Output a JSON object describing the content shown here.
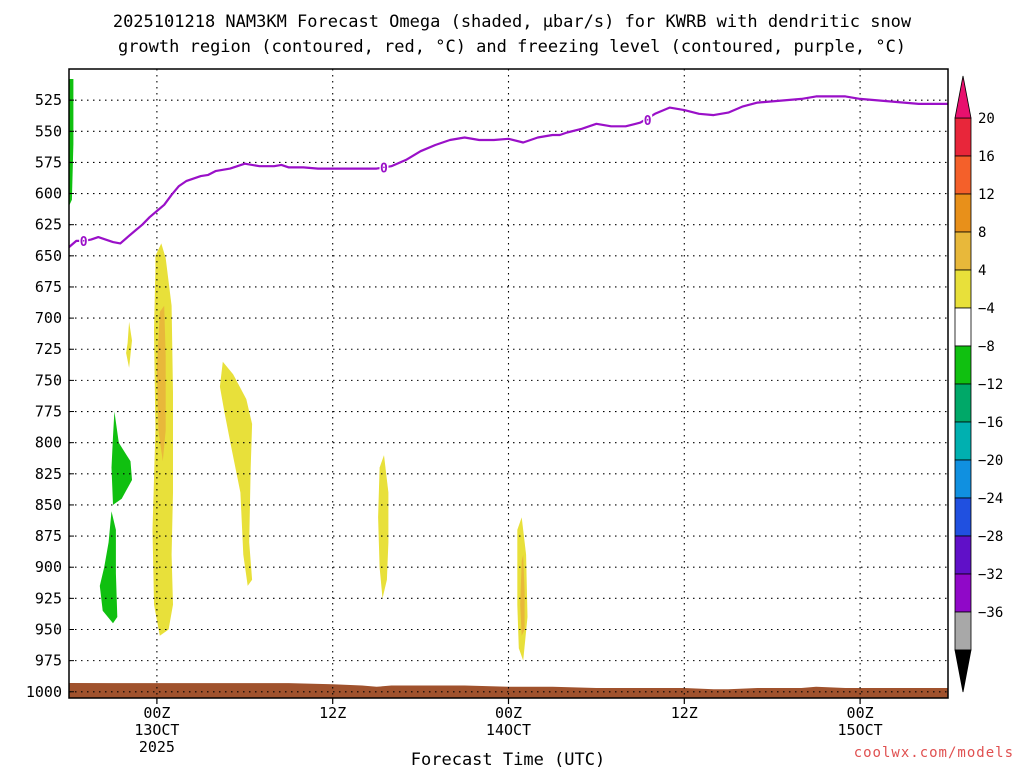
{
  "chart_data": {
    "type": "heatmap",
    "title_lines": [
      "2025101218 NAM3KM Forecast Omega (shaded, μbar/s) for KWRB with dendritic snow",
      "growth region (contoured, red, °C) and freezing level (contoured, purple, °C)"
    ],
    "xlabel": "Forecast Time (UTC)",
    "ylabel": "",
    "credit": "coolwx.com/models",
    "x_unit": "hours since 2025-10-12 18Z",
    "xlim": [
      0,
      60
    ],
    "ylim": [
      1005,
      500
    ],
    "y_ticks": [
      525,
      550,
      575,
      600,
      625,
      650,
      675,
      700,
      725,
      750,
      775,
      800,
      825,
      850,
      875,
      900,
      925,
      950,
      975,
      1000
    ],
    "x_ticks": [
      {
        "x": 6,
        "lines": [
          "00Z",
          "13OCT",
          "2025"
        ]
      },
      {
        "x": 18,
        "lines": [
          "12Z"
        ]
      },
      {
        "x": 30,
        "lines": [
          "00Z",
          "14OCT"
        ]
      },
      {
        "x": 42,
        "lines": [
          "12Z"
        ]
      },
      {
        "x": 54,
        "lines": [
          "00Z",
          "15OCT"
        ]
      }
    ],
    "vertical_grid_x": [
      6,
      18,
      30,
      42,
      54
    ],
    "grid": true,
    "colorbar": {
      "placement": "right",
      "labels": [
        "20",
        "16",
        "12",
        "8",
        "4",
        "−4",
        "−8",
        "−12",
        "−16",
        "−20",
        "−24",
        "−28",
        "−32",
        "−36"
      ],
      "top_arrow_color": "#e8106e",
      "bottom_arrow_color": "#000000",
      "colors": [
        "#e8263a",
        "#f4602a",
        "#e8901a",
        "#e8b83a",
        "#e8e03a",
        "#ffffff",
        "#10c010",
        "#00a868",
        "#00b0b0",
        "#1090e0",
        "#2050e0",
        "#6010c8",
        "#9008c8",
        "#a8a8a8"
      ]
    },
    "freezing_level": {
      "color": "#9a10c8",
      "label": "0",
      "x": [
        0,
        0.5,
        1,
        1.5,
        2,
        2.5,
        3,
        3.5,
        4,
        4.5,
        5,
        5.5,
        6,
        6.5,
        7,
        7.5,
        8,
        8.5,
        9,
        9.5,
        10,
        11,
        12,
        13,
        13.5,
        14,
        14.5,
        15,
        16,
        17,
        18,
        19,
        20,
        21,
        21.5,
        22,
        23,
        24,
        25,
        26,
        27,
        28,
        29,
        30,
        31,
        32,
        33,
        33.5,
        34,
        35,
        36,
        37,
        38,
        39,
        40,
        41,
        42,
        43,
        44,
        45,
        46,
        47,
        48,
        49,
        50,
        51,
        52,
        53,
        54,
        55,
        56,
        57,
        58,
        59,
        60
      ],
      "y": [
        643,
        638,
        638,
        637,
        635,
        637,
        639,
        640,
        635,
        630,
        625,
        619,
        614,
        609,
        601,
        594,
        590,
        588,
        586,
        585,
        582,
        580,
        576,
        578,
        578,
        578,
        577,
        579,
        579,
        580,
        580,
        580,
        580,
        580,
        579,
        578,
        573,
        566,
        561,
        557,
        555,
        557,
        557,
        556,
        559,
        555,
        553,
        553,
        551,
        548,
        544,
        546,
        546,
        543,
        536,
        531,
        533,
        536,
        537,
        535,
        530,
        527,
        526,
        525,
        524,
        522,
        522,
        522,
        524,
        525,
        526,
        527,
        528,
        528,
        528
      ],
      "label_positions": [
        {
          "x": 1,
          "y": 638
        },
        {
          "x": 21.5,
          "y": 579
        },
        {
          "x": 39.5,
          "y": 541
        }
      ]
    },
    "omega_regions": [
      {
        "name": "4 to 8",
        "color": "#e8e03a",
        "points": [
          [
            5.9,
            650
          ],
          [
            6.3,
            640
          ],
          [
            6.6,
            652
          ],
          [
            7.0,
            690
          ],
          [
            7.1,
            760
          ],
          [
            7.1,
            840
          ],
          [
            7.0,
            890
          ],
          [
            7.1,
            930
          ],
          [
            6.8,
            950
          ],
          [
            6.2,
            955
          ],
          [
            5.8,
            930
          ],
          [
            5.7,
            870
          ],
          [
            5.9,
            790
          ],
          [
            5.8,
            710
          ],
          [
            5.9,
            660
          ]
        ]
      },
      {
        "name": "4 to 8",
        "color": "#e8e03a",
        "points": [
          [
            10.5,
            735
          ],
          [
            11.2,
            745
          ],
          [
            12.1,
            765
          ],
          [
            12.5,
            785
          ],
          [
            12.4,
            820
          ],
          [
            12.3,
            880
          ],
          [
            12.5,
            910
          ],
          [
            12.2,
            915
          ],
          [
            11.9,
            890
          ],
          [
            11.7,
            840
          ],
          [
            11.1,
            805
          ],
          [
            10.6,
            775
          ],
          [
            10.3,
            755
          ]
        ]
      },
      {
        "name": "4 to 8",
        "color": "#e8e03a",
        "points": [
          [
            4.0,
            720
          ],
          [
            4.1,
            703
          ],
          [
            4.3,
            718
          ],
          [
            4.1,
            740
          ],
          [
            3.9,
            728
          ]
        ]
      },
      {
        "name": "4 to 8",
        "color": "#e8e03a",
        "points": [
          [
            21.2,
            820
          ],
          [
            21.5,
            810
          ],
          [
            21.8,
            840
          ],
          [
            21.8,
            880
          ],
          [
            21.7,
            910
          ],
          [
            21.4,
            925
          ],
          [
            21.2,
            900
          ],
          [
            21.1,
            860
          ]
        ]
      },
      {
        "name": "4 to 8",
        "color": "#e8e03a",
        "points": [
          [
            30.6,
            870
          ],
          [
            30.9,
            860
          ],
          [
            31.2,
            890
          ],
          [
            31.3,
            940
          ],
          [
            31.0,
            975
          ],
          [
            30.7,
            965
          ],
          [
            30.6,
            930
          ]
        ]
      },
      {
        "name": "8 to 12",
        "color": "#e8b83a",
        "points": [
          [
            6.2,
            695
          ],
          [
            6.5,
            690
          ],
          [
            6.6,
            730
          ],
          [
            6.6,
            790
          ],
          [
            6.4,
            815
          ],
          [
            6.1,
            790
          ],
          [
            6.0,
            740
          ]
        ]
      },
      {
        "name": "8 to 12",
        "color": "#e8b83a",
        "points": [
          [
            30.9,
            895
          ],
          [
            31.0,
            890
          ],
          [
            31.1,
            920
          ],
          [
            31.1,
            950
          ],
          [
            30.9,
            955
          ],
          [
            30.8,
            930
          ]
        ]
      },
      {
        "name": "-8 to -4",
        "color": "#10c010",
        "points": [
          [
            3.1,
            775
          ],
          [
            3.4,
            800
          ],
          [
            4.2,
            815
          ],
          [
            4.3,
            830
          ],
          [
            3.6,
            845
          ],
          [
            3.0,
            850
          ],
          [
            2.9,
            820
          ],
          [
            3.0,
            795
          ]
        ]
      },
      {
        "name": "-8 to -4",
        "color": "#10c010",
        "points": [
          [
            2.9,
            855
          ],
          [
            3.2,
            870
          ],
          [
            3.2,
            905
          ],
          [
            3.3,
            940
          ],
          [
            3.0,
            945
          ],
          [
            2.3,
            935
          ],
          [
            2.1,
            915
          ],
          [
            2.4,
            900
          ],
          [
            2.7,
            880
          ]
        ]
      },
      {
        "name": "-8 to -4",
        "color": "#10c010",
        "points": [
          [
            0.0,
            508
          ],
          [
            0.3,
            508
          ],
          [
            0.3,
            560
          ],
          [
            0.2,
            605
          ],
          [
            0.0,
            610
          ]
        ]
      }
    ],
    "surface": {
      "color": "#a0522d",
      "x": [
        0,
        3,
        6,
        9,
        12,
        15,
        18,
        20,
        21,
        22,
        24,
        27,
        30,
        33,
        36,
        39,
        42,
        44,
        45,
        47,
        50,
        51,
        53,
        56,
        58,
        60
      ],
      "y": [
        993,
        993,
        993,
        993,
        993,
        993,
        994,
        995,
        996,
        995,
        995,
        995,
        996,
        996,
        997,
        997,
        997,
        998,
        998,
        997,
        997,
        996,
        997,
        997,
        997,
        997
      ]
    }
  }
}
